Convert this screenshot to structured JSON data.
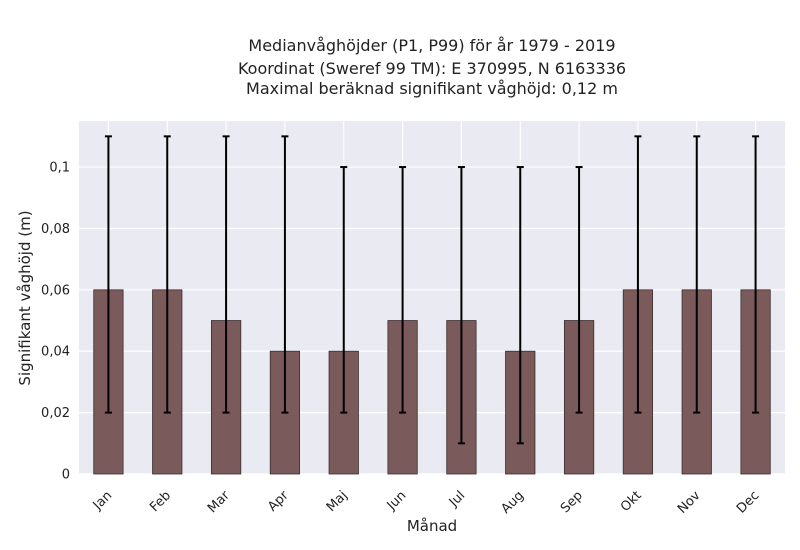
{
  "chart_data": {
    "type": "bar",
    "title_lines": [
      "Medianvåghöjder (P1, P99) för år 1979 - 2019",
      "Koordinat (Sweref 99 TM): E 370995, N 6163336",
      "Maximal beräknad signifikant våghöjd: 0,12 m"
    ],
    "xlabel": "Månad",
    "ylabel": "Signifikant våghöjd (m)",
    "categories": [
      "Jan",
      "Feb",
      "Mar",
      "Apr",
      "Maj",
      "Jun",
      "Jul",
      "Aug",
      "Sep",
      "Okt",
      "Nov",
      "Dec"
    ],
    "values": [
      0.06,
      0.06,
      0.05,
      0.04,
      0.04,
      0.05,
      0.05,
      0.04,
      0.05,
      0.06,
      0.06,
      0.06
    ],
    "p1": [
      0.02,
      0.02,
      0.02,
      0.02,
      0.02,
      0.02,
      0.01,
      0.01,
      0.02,
      0.02,
      0.02,
      0.02
    ],
    "p99": [
      0.11,
      0.11,
      0.11,
      0.11,
      0.1,
      0.1,
      0.1,
      0.1,
      0.1,
      0.11,
      0.11,
      0.11
    ],
    "yticks": [
      0,
      0.02,
      0.04,
      0.06,
      0.08,
      0.1
    ],
    "ytick_labels": [
      "0",
      "0,02",
      "0,04",
      "0,06",
      "0,08",
      "0,1"
    ],
    "ylim": [
      0,
      0.115
    ],
    "grid": true,
    "colors": {
      "bar": "#7a5a5a",
      "bar_edge": "#3a2f2f",
      "errorbar": "#000000",
      "plot_bg": "#eaeaf2",
      "grid": "#ffffff"
    }
  }
}
